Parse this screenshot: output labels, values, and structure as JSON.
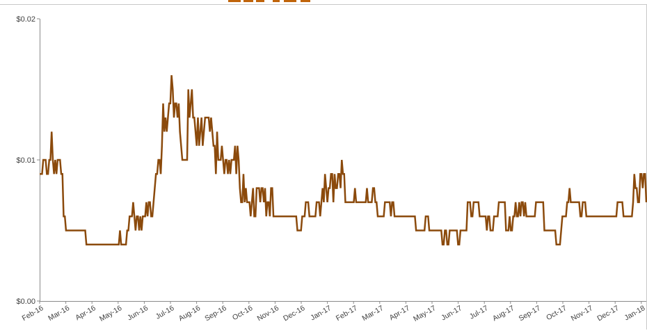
{
  "chart_data": {
    "type": "line",
    "title": "",
    "xlabel": "",
    "ylabel": "",
    "y_ticks": [
      {
        "value": 0,
        "label": "$0.00"
      },
      {
        "value": 0.01,
        "label": "$0.01"
      },
      {
        "value": 0.02,
        "label": "$0.02"
      }
    ],
    "ylim": [
      0,
      0.02
    ],
    "x_ticks": [
      "Feb-16",
      "Mar-16",
      "Apr-16",
      "May-16",
      "Jun-16",
      "Jul-16",
      "Aug-16",
      "Sep-16",
      "Oct-16",
      "Nov-16",
      "Dec-16",
      "Jan-17",
      "Feb-17",
      "Mar-17",
      "Apr-17",
      "May-17",
      "Jun-17",
      "Jul-17",
      "Aug-17",
      "Sep-17",
      "Oct-17",
      "Nov-17",
      "Dec-17",
      "Jan-18"
    ],
    "series": [
      {
        "color": "#8B4A0C",
        "values": [
          0.009,
          0.009,
          0.009,
          0.01,
          0.01,
          0.01,
          0.009,
          0.009,
          0.01,
          0.01,
          0.012,
          0.01,
          0.009,
          0.01,
          0.009,
          0.01,
          0.01,
          0.01,
          0.009,
          0.009,
          0.006,
          0.006,
          0.005,
          0.005,
          0.005,
          0.005,
          0.005,
          0.005,
          0.005,
          0.005,
          0.005,
          0.005,
          0.005,
          0.005,
          0.005,
          0.005,
          0.005,
          0.005,
          0.005,
          0.004,
          0.004,
          0.004,
          0.004,
          0.004,
          0.004,
          0.004,
          0.004,
          0.004,
          0.004,
          0.004,
          0.004,
          0.004,
          0.004,
          0.004,
          0.004,
          0.004,
          0.004,
          0.004,
          0.004,
          0.004,
          0.004,
          0.004,
          0.004,
          0.004,
          0.004,
          0.004,
          0.004,
          0.005,
          0.004,
          0.004,
          0.004,
          0.004,
          0.004,
          0.005,
          0.005,
          0.006,
          0.006,
          0.006,
          0.007,
          0.006,
          0.005,
          0.006,
          0.006,
          0.005,
          0.006,
          0.005,
          0.006,
          0.006,
          0.006,
          0.007,
          0.006,
          0.007,
          0.007,
          0.006,
          0.006,
          0.007,
          0.008,
          0.009,
          0.009,
          0.01,
          0.01,
          0.009,
          0.011,
          0.014,
          0.012,
          0.013,
          0.012,
          0.013,
          0.014,
          0.014,
          0.016,
          0.015,
          0.013,
          0.014,
          0.014,
          0.013,
          0.014,
          0.012,
          0.011,
          0.01,
          0.01,
          0.01,
          0.01,
          0.01,
          0.015,
          0.013,
          0.014,
          0.015,
          0.013,
          0.013,
          0.012,
          0.011,
          0.013,
          0.011,
          0.012,
          0.013,
          0.011,
          0.012,
          0.013,
          0.013,
          0.013,
          0.013,
          0.012,
          0.013,
          0.012,
          0.011,
          0.011,
          0.009,
          0.012,
          0.01,
          0.01,
          0.01,
          0.011,
          0.01,
          0.009,
          0.01,
          0.01,
          0.009,
          0.01,
          0.009,
          0.01,
          0.01,
          0.01,
          0.011,
          0.009,
          0.011,
          0.01,
          0.008,
          0.007,
          0.007,
          0.009,
          0.007,
          0.008,
          0.007,
          0.007,
          0.007,
          0.006,
          0.007,
          0.008,
          0.006,
          0.006,
          0.008,
          0.008,
          0.008,
          0.007,
          0.008,
          0.008,
          0.007,
          0.008,
          0.006,
          0.007,
          0.007,
          0.006,
          0.008,
          0.008,
          0.006,
          0.006,
          0.006,
          0.006,
          0.006,
          0.006,
          0.006,
          0.006,
          0.006,
          0.006,
          0.006,
          0.006,
          0.006,
          0.006,
          0.006,
          0.006,
          0.006,
          0.006,
          0.006,
          0.006,
          0.005,
          0.005,
          0.005,
          0.005,
          0.006,
          0.006,
          0.006,
          0.007,
          0.007,
          0.007,
          0.006,
          0.006,
          0.006,
          0.006,
          0.006,
          0.006,
          0.007,
          0.007,
          0.007,
          0.006,
          0.007,
          0.008,
          0.007,
          0.009,
          0.008,
          0.007,
          0.008,
          0.008,
          0.009,
          0.009,
          0.007,
          0.009,
          0.008,
          0.008,
          0.009,
          0.009,
          0.008,
          0.01,
          0.009,
          0.009,
          0.007,
          0.007,
          0.007,
          0.007,
          0.007,
          0.007,
          0.007,
          0.007,
          0.008,
          0.007,
          0.007,
          0.007,
          0.007,
          0.007,
          0.007,
          0.007,
          0.007,
          0.007,
          0.008,
          0.007,
          0.007,
          0.007,
          0.007,
          0.008,
          0.008,
          0.007,
          0.007,
          0.006,
          0.006,
          0.006,
          0.006,
          0.006,
          0.006,
          0.007,
          0.007,
          0.007,
          0.007,
          0.007,
          0.006,
          0.007,
          0.007,
          0.006,
          0.006,
          0.006,
          0.006,
          0.006,
          0.006,
          0.006,
          0.006,
          0.006,
          0.006,
          0.006,
          0.006,
          0.006,
          0.006,
          0.006,
          0.006,
          0.006,
          0.006,
          0.005,
          0.005,
          0.005,
          0.005,
          0.005,
          0.005,
          0.005,
          0.005,
          0.006,
          0.006,
          0.006,
          0.005,
          0.005,
          0.005,
          0.005,
          0.005,
          0.005,
          0.005,
          0.005,
          0.005,
          0.005,
          0.005,
          0.004,
          0.004,
          0.005,
          0.005,
          0.004,
          0.004,
          0.005,
          0.005,
          0.005,
          0.005,
          0.005,
          0.005,
          0.005,
          0.004,
          0.004,
          0.005,
          0.005,
          0.005,
          0.005,
          0.005,
          0.005,
          0.007,
          0.007,
          0.007,
          0.006,
          0.006,
          0.007,
          0.007,
          0.007,
          0.007,
          0.007,
          0.006,
          0.006,
          0.006,
          0.006,
          0.006,
          0.006,
          0.005,
          0.006,
          0.006,
          0.005,
          0.005,
          0.005,
          0.006,
          0.006,
          0.006,
          0.006,
          0.007,
          0.007,
          0.007,
          0.007,
          0.007,
          0.007,
          0.005,
          0.005,
          0.005,
          0.006,
          0.005,
          0.005,
          0.006,
          0.006,
          0.007,
          0.006,
          0.006,
          0.007,
          0.006,
          0.007,
          0.007,
          0.006,
          0.007,
          0.006,
          0.006,
          0.006,
          0.006,
          0.006,
          0.006,
          0.006,
          0.006,
          0.007,
          0.007,
          0.007,
          0.007,
          0.007,
          0.007,
          0.007,
          0.005,
          0.005,
          0.005,
          0.005,
          0.005,
          0.005,
          0.005,
          0.005,
          0.005,
          0.005,
          0.004,
          0.004,
          0.004,
          0.004,
          0.005,
          0.006,
          0.006,
          0.006,
          0.006,
          0.007,
          0.007,
          0.008,
          0.007,
          0.007,
          0.007,
          0.007,
          0.007,
          0.007,
          0.007,
          0.007,
          0.006,
          0.006,
          0.007,
          0.007,
          0.007,
          0.006,
          0.006,
          0.006,
          0.006,
          0.006,
          0.006,
          0.006,
          0.006,
          0.006,
          0.006,
          0.006,
          0.006,
          0.006,
          0.006,
          0.006,
          0.006,
          0.006,
          0.006,
          0.006,
          0.006,
          0.006,
          0.006,
          0.006,
          0.006,
          0.006,
          0.006,
          0.007,
          0.007,
          0.007,
          0.007,
          0.007,
          0.006,
          0.006,
          0.006,
          0.006,
          0.006,
          0.006,
          0.006,
          0.006,
          0.007,
          0.009,
          0.008,
          0.008,
          0.007,
          0.007,
          0.009,
          0.009,
          0.008,
          0.009,
          0.009,
          0.007
        ]
      }
    ],
    "grid": false,
    "legend": "none"
  }
}
